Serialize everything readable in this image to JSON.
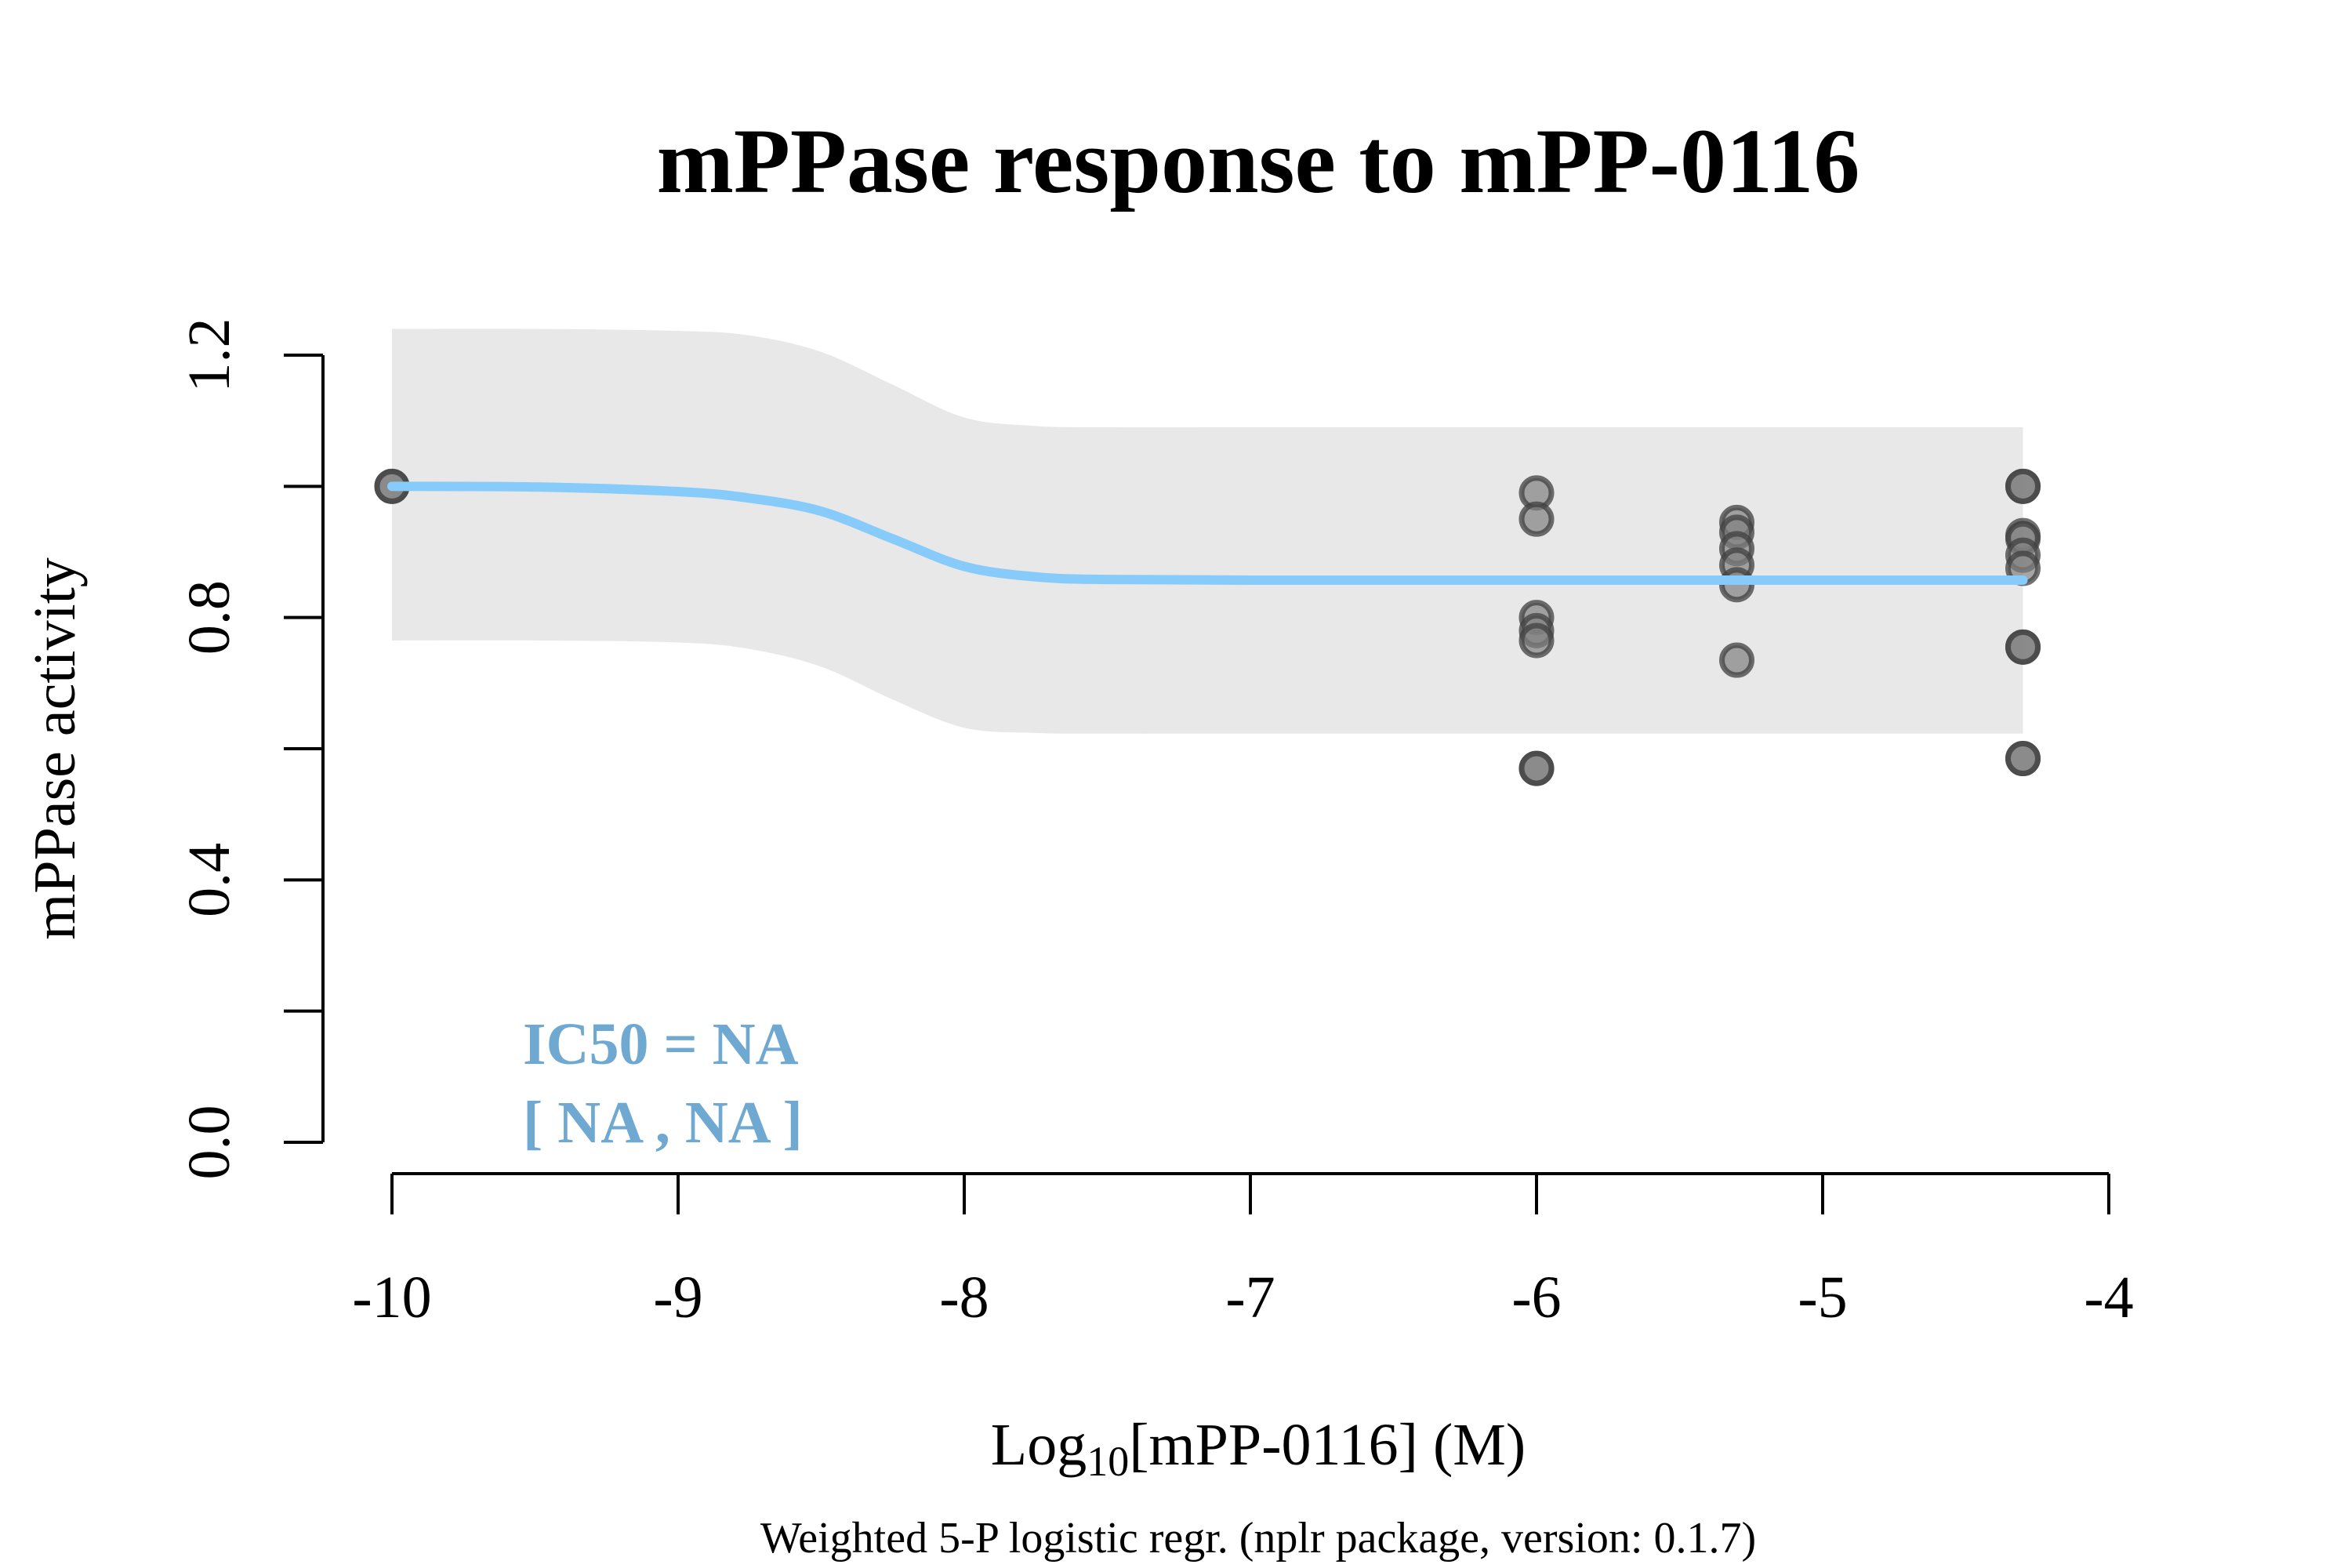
{
  "chart_data": {
    "type": "scatter",
    "title": "mPPase response to mPP-0116",
    "xlabel_main": "Log",
    "xlabel_sub": "10",
    "xlabel_rest": "[mPP-0116] (M)",
    "ylabel": "mPPase activity",
    "footnote": "Weighted 5-P logistic regr. (nplr package, version: 0.1.7)",
    "ic50_line1": "IC50 = NA",
    "ic50_line2": "[ NA , NA ]",
    "xlim": [
      -10,
      -4
    ],
    "ylim": [
      0,
      1.2
    ],
    "x_ticks": [
      -10,
      -9,
      -8,
      -7,
      -6,
      -5,
      -4
    ],
    "x_tick_labels": [
      "-10",
      "-9",
      "-8",
      "-7",
      "-6",
      "-5",
      "-4"
    ],
    "y_ticks": [
      0,
      0.2,
      0.4,
      0.6,
      0.8,
      1.0,
      1.2
    ],
    "y_tick_labels": [
      "0.0",
      "",
      "0.4",
      "",
      "0.8",
      "",
      "1.2"
    ],
    "points": [
      {
        "x": -10,
        "y": 1.0
      },
      {
        "x": -10,
        "y": 1.0
      },
      {
        "x": -6,
        "y": 0.99
      },
      {
        "x": -6,
        "y": 0.95
      },
      {
        "x": -6,
        "y": 0.8
      },
      {
        "x": -6,
        "y": 0.78
      },
      {
        "x": -6,
        "y": 0.765
      },
      {
        "x": -6,
        "y": 0.57
      },
      {
        "x": -6,
        "y": 0.57
      },
      {
        "x": -5.3,
        "y": 0.945
      },
      {
        "x": -5.3,
        "y": 0.93
      },
      {
        "x": -5.3,
        "y": 0.905
      },
      {
        "x": -5.3,
        "y": 0.88
      },
      {
        "x": -5.3,
        "y": 0.85
      },
      {
        "x": -5.3,
        "y": 0.735
      },
      {
        "x": -4.3,
        "y": 1.0
      },
      {
        "x": -4.3,
        "y": 1.0
      },
      {
        "x": -4.3,
        "y": 0.925
      },
      {
        "x": -4.3,
        "y": 0.92
      },
      {
        "x": -4.3,
        "y": 0.895
      },
      {
        "x": -4.3,
        "y": 0.875
      },
      {
        "x": -4.3,
        "y": 0.755
      },
      {
        "x": -4.3,
        "y": 0.755
      },
      {
        "x": -4.3,
        "y": 0.585
      },
      {
        "x": -4.3,
        "y": 0.585
      }
    ],
    "fit_curve": {
      "x": [
        -10,
        -9.5,
        -9,
        -8.75,
        -8.5,
        -8.25,
        -8,
        -7.75,
        -7.5,
        -7,
        -6,
        -5,
        -4.3
      ],
      "y": [
        1.0,
        0.999,
        0.992,
        0.982,
        0.962,
        0.92,
        0.878,
        0.862,
        0.858,
        0.857,
        0.857,
        0.857,
        0.857
      ]
    },
    "confidence_band": {
      "x": [
        -10,
        -9.5,
        -9,
        -8.75,
        -8.5,
        -8.25,
        -8,
        -7.75,
        -7.5,
        -7,
        -6,
        -5,
        -4.3
      ],
      "upper": [
        1.24,
        1.24,
        1.237,
        1.23,
        1.205,
        1.155,
        1.105,
        1.092,
        1.09,
        1.09,
        1.09,
        1.09,
        1.09
      ],
      "lower": [
        0.765,
        0.765,
        0.762,
        0.752,
        0.725,
        0.675,
        0.632,
        0.624,
        0.623,
        0.623,
        0.623,
        0.623,
        0.623
      ]
    },
    "colors": {
      "curve": "#87cbfa",
      "band": "#e8e8e8",
      "point_fill": "#808080",
      "point_stroke": "#404040",
      "ic50_text": "#6fa8d0"
    },
    "grid": false
  }
}
